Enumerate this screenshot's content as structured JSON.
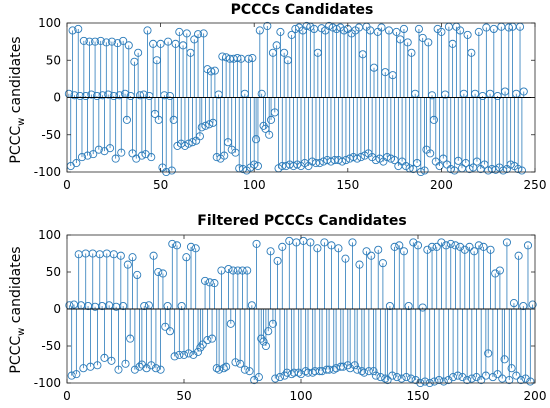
{
  "chart_data": [
    {
      "type": "stem",
      "title": "PCCCs Candidates",
      "ylabel": {
        "main": "PCCC",
        "sub": "w",
        "rest": " candidates"
      },
      "xlabel": "",
      "xlim": [
        0,
        250
      ],
      "ylim": [
        -100,
        100
      ],
      "xticks": [
        0,
        50,
        100,
        150,
        200,
        250
      ],
      "yticks": [
        100,
        50,
        0,
        -50,
        -100
      ],
      "grid": false,
      "color": "#2b7bba",
      "n_points": 244,
      "approx_values": [
        5,
        -92,
        90,
        3,
        -88,
        92,
        2,
        -80,
        76,
        2,
        -78,
        75,
        4,
        -76,
        75,
        2,
        -70,
        76,
        3,
        -72,
        74,
        4,
        -68,
        75,
        2,
        -82,
        73,
        3,
        -74,
        76,
        5,
        -30,
        70,
        2,
        -75,
        48,
        -82,
        60,
        3,
        -78,
        4,
        -76,
        90,
        2,
        -80,
        72,
        -22,
        50,
        -30,
        72,
        -94,
        3,
        -100,
        75,
        2,
        -98,
        -30,
        72,
        -65,
        88,
        -62,
        70,
        -65,
        86,
        -62,
        60,
        -60,
        78,
        -58,
        85,
        -52,
        -40,
        86,
        -38,
        38,
        -36,
        35,
        -34,
        36,
        -80,
        4,
        -82,
        55,
        -78,
        54,
        -60,
        52,
        -70,
        52,
        -74,
        53,
        -95,
        52,
        -96,
        5,
        -98,
        52,
        -94,
        53,
        -90,
        -56,
        -92,
        90,
        5,
        -38,
        -42,
        96,
        -50,
        -30,
        60,
        -20,
        70,
        -95,
        88,
        -92,
        60,
        -92,
        50,
        -90,
        84,
        -92,
        92,
        -90,
        94,
        -92,
        90,
        -88,
        96,
        -92,
        95,
        -86,
        92,
        -88,
        60,
        -88,
        93,
        -86,
        90,
        -84,
        96,
        -86,
        94,
        -84,
        92,
        -84,
        94,
        -86,
        90,
        -84,
        92,
        -82,
        86,
        -80,
        90,
        -82,
        94,
        -80,
        58,
        -78,
        95,
        -75,
        90,
        -80,
        40,
        -84,
        88,
        -82,
        94,
        -86,
        34,
        -80,
        90,
        -82,
        30,
        -84,
        88,
        -92,
        78,
        -86,
        92,
        -92,
        74,
        -95,
        60,
        -96,
        5,
        -88,
        92,
        -100,
        80,
        -98,
        -70,
        74,
        -75,
        3,
        -30,
        -86,
        92,
        -92,
        88,
        -82,
        4,
        -90,
        95,
        -96,
        72,
        -98,
        95,
        -85,
        90,
        -95,
        5,
        -88,
        84,
        -96,
        60,
        -94,
        5,
        -86,
        88,
        -96,
        2,
        -90,
        94,
        -98,
        5,
        -96,
        92,
        -97,
        2,
        -94,
        95,
        -98,
        8,
        -96,
        94,
        -90,
        95,
        -92,
        5,
        -96,
        95,
        -98,
        8,
        -96,
        95
      ]
    },
    {
      "type": "stem",
      "title": "Filtered PCCCs Candidates",
      "ylabel": {
        "main": "PCCC",
        "sub": "w",
        "rest": " candidates"
      },
      "xlabel": "",
      "xlim": [
        0,
        200
      ],
      "ylim": [
        -100,
        100
      ],
      "xticks": [
        0,
        50,
        100,
        150,
        200
      ],
      "yticks": [
        100,
        50,
        0,
        -50,
        -100
      ],
      "grid": false,
      "color": "#2b7bba",
      "n_points": 199,
      "approx_values": [
        5,
        -90,
        6,
        -88,
        74,
        5,
        -80,
        75,
        4,
        -78,
        75,
        3,
        -76,
        74,
        4,
        -66,
        75,
        5,
        -70,
        74,
        3,
        -82,
        72,
        4,
        -74,
        60,
        -40,
        70,
        -82,
        46,
        -78,
        -75,
        4,
        -80,
        5,
        -76,
        72,
        -80,
        50,
        -82,
        48,
        -24,
        4,
        -30,
        88,
        -64,
        86,
        -62,
        4,
        -62,
        70,
        -60,
        84,
        -62,
        82,
        -58,
        -52,
        -48,
        38,
        -42,
        36,
        -40,
        35,
        -80,
        -82,
        52,
        -80,
        -78,
        54,
        -20,
        52,
        -72,
        52,
        -74,
        52,
        -82,
        52,
        -84,
        5,
        -96,
        88,
        -92,
        -40,
        -44,
        -50,
        -30,
        78,
        -20,
        -94,
        65,
        -92,
        84,
        -90,
        -86,
        92,
        -88,
        -86,
        90,
        -86,
        -88,
        92,
        -84,
        -86,
        90,
        -86,
        -84,
        82,
        -84,
        -84,
        90,
        -82,
        -82,
        86,
        -82,
        -80,
        82,
        -78,
        -78,
        68,
        -76,
        -80,
        90,
        -76,
        -82,
        60,
        -84,
        -86,
        78,
        -84,
        72,
        -84,
        -90,
        80,
        -92,
        62,
        -94,
        -96,
        4,
        -90,
        84,
        -92,
        86,
        -94,
        78,
        -92,
        4,
        -94,
        90,
        -96,
        86,
        -100,
        2,
        -98,
        80,
        -100,
        84,
        -98,
        84,
        -96,
        90,
        -98,
        86,
        -96,
        88,
        -92,
        86,
        -90,
        84,
        -92,
        80,
        -96,
        84,
        -94,
        78,
        -92,
        86,
        -96,
        84,
        -90,
        -60,
        80,
        -92,
        48,
        -88,
        52,
        -94,
        -68,
        90,
        -96,
        -80,
        8,
        -90,
        72,
        -96,
        4,
        -94,
        86,
        -98,
        6,
        -92,
        90,
        -94,
        4
      ]
    }
  ]
}
